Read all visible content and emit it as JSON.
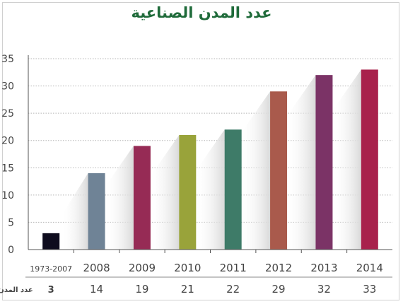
{
  "colors": {
    "title": "#1f6b3a",
    "grid": "#b5b5b5",
    "axis": "#555555",
    "text": "#444444",
    "shadow": "#d9d9d9"
  },
  "chart_data": {
    "type": "bar",
    "title": "عدد المدن الصناعية",
    "categories": [
      "1973-2007",
      "2008",
      "2009",
      "2010",
      "2011",
      "2012",
      "2013",
      "2014"
    ],
    "values": [
      3,
      14,
      19,
      21,
      22,
      29,
      32,
      33
    ],
    "value_labels": [
      "3",
      "14",
      "19",
      "21",
      "22",
      "29",
      "32",
      "33"
    ],
    "bar_colors": [
      "#0e0c1e",
      "#6f8396",
      "#962b55",
      "#99a33a",
      "#3e7b68",
      "#a95a4c",
      "#7b3366",
      "#a8214c"
    ],
    "value_row_label": "عدد المدن",
    "ylim": [
      0,
      35
    ],
    "yticks": [
      0,
      5,
      10,
      15,
      20,
      25,
      30,
      35
    ],
    "grid": true
  }
}
